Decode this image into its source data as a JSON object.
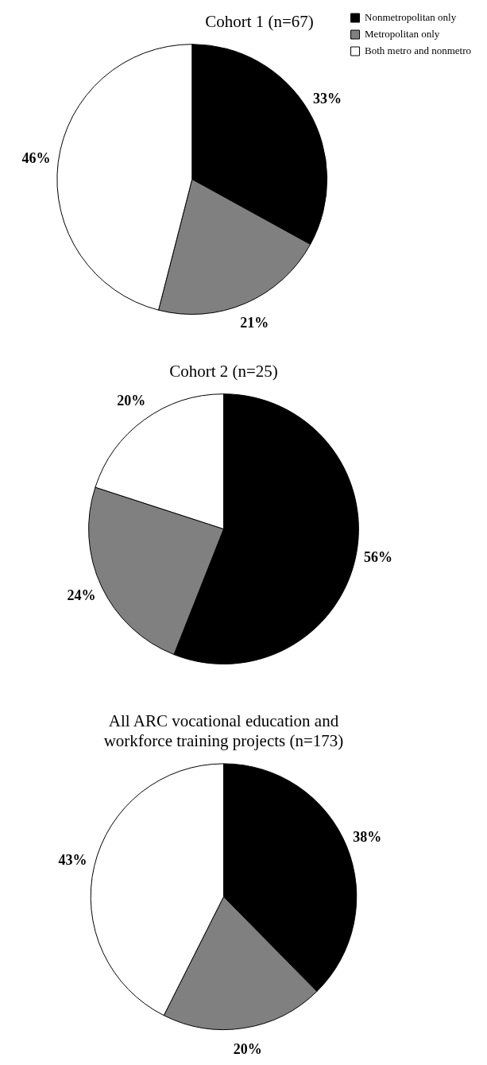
{
  "chart_data": [
    {
      "type": "pie",
      "title": "Cohort 1 (n=67)",
      "categories": [
        "Nonmetropolitan only",
        "Metropolitan only",
        "Both metro and nonmetro"
      ],
      "values": [
        33,
        21,
        46
      ],
      "colors": [
        "#000000",
        "#808080",
        "#ffffff"
      ],
      "value_labels": [
        "33%",
        "21%",
        "46%"
      ],
      "legend": "top right"
    },
    {
      "type": "pie",
      "title": "Cohort 2 (n=25)",
      "categories": [
        null,
        null,
        null
      ],
      "values": [
        56,
        24,
        20
      ],
      "colors": [
        "#000000",
        "#808080",
        "#ffffff"
      ],
      "value_labels": [
        "56%",
        "24%",
        "20%"
      ],
      "legend": false
    },
    {
      "type": "pie",
      "title": "All ARC vocational education and workforce training projects (n=173)",
      "categories": [
        null,
        null,
        null
      ],
      "values": [
        38,
        20,
        43
      ],
      "colors": [
        "#000000",
        "#808080",
        "#ffffff"
      ],
      "value_labels": [
        "38%",
        "20%",
        "43%"
      ],
      "legend": false
    }
  ]
}
